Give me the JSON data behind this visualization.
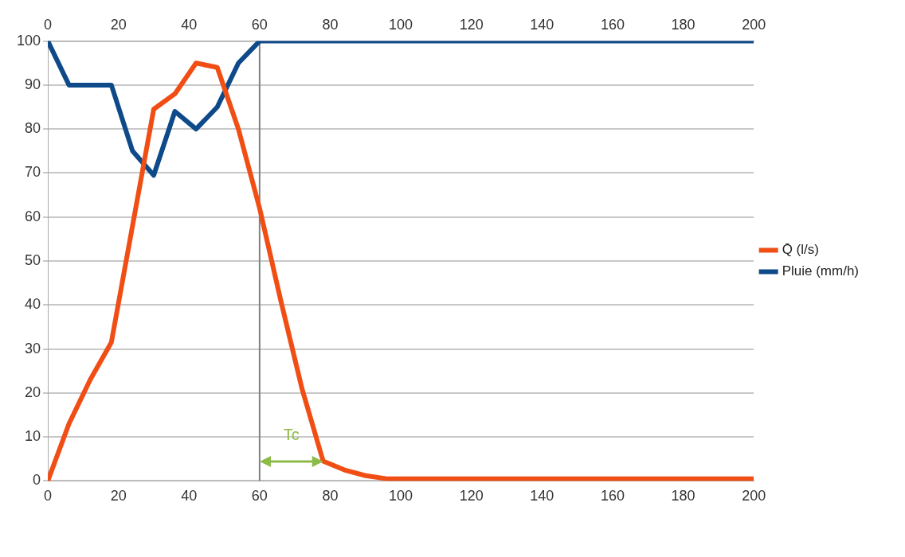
{
  "chart_data": {
    "type": "line",
    "xlim": [
      0,
      200
    ],
    "xticks": [
      0,
      20,
      40,
      60,
      80,
      100,
      120,
      140,
      160,
      180,
      200
    ],
    "x2lim": [
      0,
      200
    ],
    "x2ticks": [
      0,
      20,
      40,
      60,
      80,
      100,
      120,
      140,
      160,
      180,
      200
    ],
    "ylim": [
      0,
      100
    ],
    "yticks": [
      0,
      10,
      20,
      30,
      40,
      50,
      60,
      70,
      80,
      90,
      100
    ],
    "grid": "y",
    "legend": "right",
    "marker": "none",
    "line_style": "solid",
    "series": [
      {
        "name": "Q̄ (l/s)",
        "color": "#f04e14",
        "x": [
          0,
          6,
          12,
          18,
          24,
          30,
          36,
          42,
          48,
          54,
          60,
          66,
          72,
          78,
          84,
          90,
          96,
          200
        ],
        "values": [
          0,
          13,
          23,
          31.5,
          58,
          84.5,
          88,
          95,
          94,
          80,
          62,
          41,
          21,
          4.5,
          2.5,
          1.2,
          0.5,
          0.5
        ]
      },
      {
        "name": "Pluie (mm/h)",
        "color": "#0e4a8a",
        "x": [
          0,
          6,
          12,
          18,
          24,
          30,
          36,
          42,
          48,
          54,
          60,
          200
        ],
        "values": [
          100,
          90,
          90,
          90,
          75,
          69.5,
          84,
          80,
          85,
          95,
          100,
          100
        ]
      }
    ],
    "ref_lines": [
      {
        "axis": "x",
        "value": 60,
        "color": "#808080"
      }
    ],
    "annotations": [
      {
        "text": "Tc",
        "x": 78,
        "y": 4.5
      }
    ]
  }
}
